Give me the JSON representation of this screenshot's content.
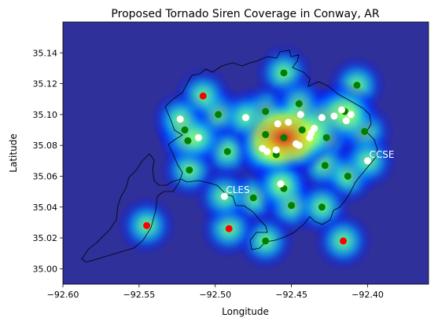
{
  "chart_data": {
    "type": "scatter",
    "title": "Proposed Tornado Siren Coverage in Conway, AR",
    "xlabel": "Longitude",
    "ylabel": "Latitude",
    "xlim": [
      -92.6,
      -92.36
    ],
    "ylim": [
      34.99,
      35.16
    ],
    "xticks": [
      -92.6,
      -92.55,
      -92.5,
      -92.45,
      -92.4
    ],
    "xtick_labels": [
      "−92.60",
      "−92.55",
      "−92.50",
      "−92.45",
      "−92.40"
    ],
    "yticks": [
      35.0,
      35.02,
      35.04,
      35.06,
      35.08,
      35.1,
      35.12,
      35.14
    ],
    "ytick_labels": [
      "35.00",
      "35.02",
      "35.04",
      "35.06",
      "35.08",
      "35.10",
      "35.12",
      "35.14"
    ],
    "grid": false,
    "background_colormap": "jet",
    "series": [
      {
        "color": "#008000",
        "points": [
          [
            -92.455,
            35.127
          ],
          [
            -92.407,
            35.119
          ],
          [
            -92.498,
            35.1
          ],
          [
            -92.467,
            35.102
          ],
          [
            -92.445,
            35.107
          ],
          [
            -92.52,
            35.09
          ],
          [
            -92.518,
            35.083
          ],
          [
            -92.492,
            35.076
          ],
          [
            -92.467,
            35.087
          ],
          [
            -92.455,
            35.085
          ],
          [
            -92.443,
            35.09
          ],
          [
            -92.427,
            35.085
          ],
          [
            -92.415,
            35.102
          ],
          [
            -92.402,
            35.089
          ],
          [
            -92.428,
            35.067
          ],
          [
            -92.517,
            35.064
          ],
          [
            -92.46,
            35.074
          ],
          [
            -92.413,
            35.06
          ],
          [
            -92.475,
            35.046
          ],
          [
            -92.455,
            35.052
          ],
          [
            -92.45,
            35.041
          ],
          [
            -92.43,
            35.04
          ],
          [
            -92.467,
            35.018
          ]
        ]
      },
      {
        "color": "#ff0000",
        "points": [
          [
            -92.508,
            35.112
          ],
          [
            -92.545,
            35.028
          ],
          [
            -92.491,
            35.026
          ],
          [
            -92.416,
            35.018
          ]
        ]
      },
      {
        "color": "#ffffff",
        "points": [
          [
            -92.523,
            35.097
          ],
          [
            -92.511,
            35.085
          ],
          [
            -92.48,
            35.098
          ],
          [
            -92.459,
            35.094
          ],
          [
            -92.452,
            35.095
          ],
          [
            -92.444,
            35.1
          ],
          [
            -92.43,
            35.098
          ],
          [
            -92.422,
            35.099
          ],
          [
            -92.414,
            35.096
          ],
          [
            -92.417,
            35.103
          ],
          [
            -92.411,
            35.1
          ],
          [
            -92.469,
            35.078
          ],
          [
            -92.466,
            35.076
          ],
          [
            -92.447,
            35.081
          ],
          [
            -92.445,
            35.08
          ],
          [
            -92.437,
            35.088
          ],
          [
            -92.435,
            35.091
          ],
          [
            -92.438,
            35.085
          ],
          [
            -92.46,
            35.077
          ],
          [
            -92.4,
            35.07
          ],
          [
            -92.494,
            35.047
          ],
          [
            -92.457,
            35.055
          ]
        ]
      }
    ],
    "annotations": [
      {
        "text": "CCSE",
        "x": -92.399,
        "y": 35.072
      },
      {
        "text": "CLES",
        "x": -92.493,
        "y": 35.049
      }
    ]
  }
}
